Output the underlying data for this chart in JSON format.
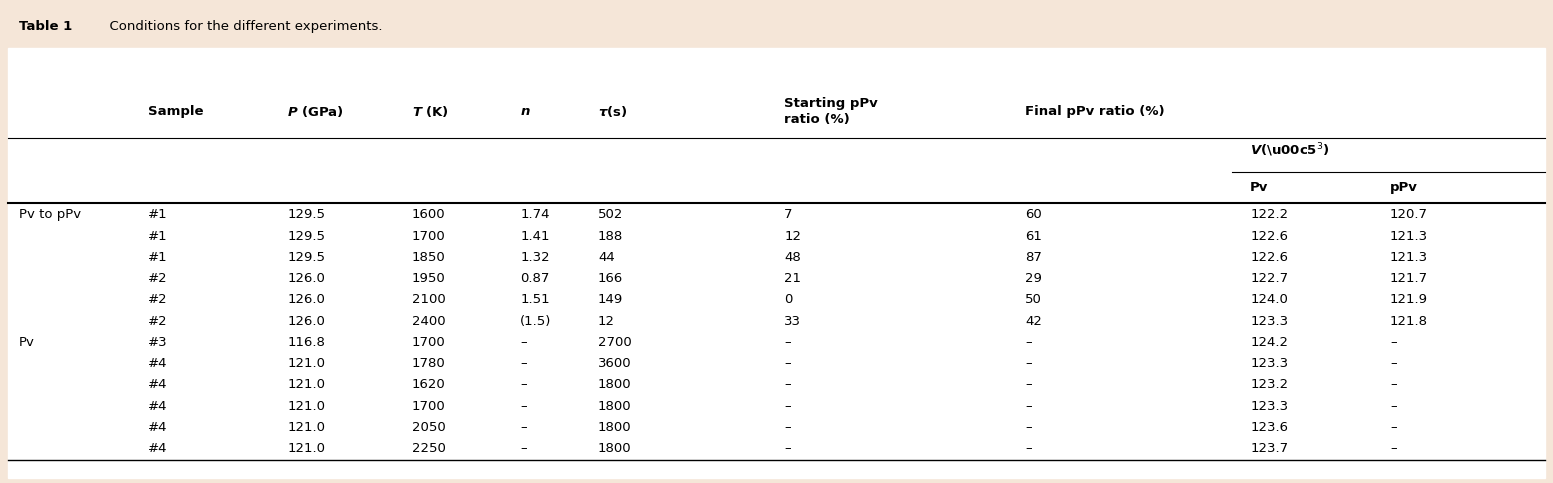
{
  "title_bold": "Table 1",
  "title_rest": "  Conditions for the different experiments.",
  "bg_color_top": "#f5e6d8",
  "bg_color_table": "#ffffff",
  "col_labels_left": [
    "Pv to pPv",
    "",
    "",
    "",
    "",
    "",
    "Pv",
    "",
    "",
    "",
    "",
    ""
  ],
  "rows": [
    [
      "#1",
      "129.5",
      "1600",
      "1.74",
      "502",
      "7",
      "60",
      "122.2",
      "120.7"
    ],
    [
      "#1",
      "129.5",
      "1700",
      "1.41",
      "188",
      "12",
      "61",
      "122.6",
      "121.3"
    ],
    [
      "#1",
      "129.5",
      "1850",
      "1.32",
      "44",
      "48",
      "87",
      "122.6",
      "121.3"
    ],
    [
      "#2",
      "126.0",
      "1950",
      "0.87",
      "166",
      "21",
      "29",
      "122.7",
      "121.7"
    ],
    [
      "#2",
      "126.0",
      "2100",
      "1.51",
      "149",
      "0",
      "50",
      "124.0",
      "121.9"
    ],
    [
      "#2",
      "126.0",
      "2400",
      "(1.5)",
      "12",
      "33",
      "42",
      "123.3",
      "121.8"
    ],
    [
      "#3",
      "116.8",
      "1700",
      "–",
      "2700",
      "–",
      "–",
      "124.2",
      "–"
    ],
    [
      "#4",
      "121.0",
      "1780",
      "–",
      "3600",
      "–",
      "–",
      "123.3",
      "–"
    ],
    [
      "#4",
      "121.0",
      "1620",
      "–",
      "1800",
      "–",
      "–",
      "123.2",
      "–"
    ],
    [
      "#4",
      "121.0",
      "1700",
      "–",
      "1800",
      "–",
      "–",
      "123.3",
      "–"
    ],
    [
      "#4",
      "121.0",
      "2050",
      "–",
      "1800",
      "–",
      "–",
      "123.6",
      "–"
    ],
    [
      "#4",
      "121.0",
      "2250",
      "–",
      "1800",
      "–",
      "–",
      "123.7",
      "–"
    ]
  ],
  "header_fontsize": 9.5,
  "data_fontsize": 9.5,
  "title_fontsize": 9.5
}
